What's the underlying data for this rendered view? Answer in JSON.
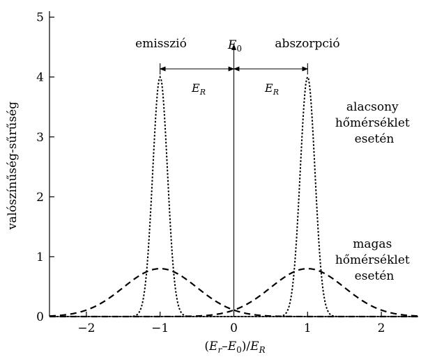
{
  "chart_data": {
    "type": "line",
    "title": "",
    "ylabel": "valószínűség-sűrűség",
    "xlabel": {
      "p1": "(",
      "E1": "E",
      "sub1": "r",
      "dash": "–",
      "E2": "E",
      "sub2": "0",
      "p2": ")/",
      "E3": "E",
      "sub3": "R"
    },
    "xlim": [
      -2.5,
      2.5
    ],
    "ylim": [
      0,
      5.1
    ],
    "xticks": [
      -2,
      -1,
      0,
      1,
      2
    ],
    "xtick_labels": [
      "−2",
      "−1",
      "0",
      "1",
      "2"
    ],
    "yticks": [
      0,
      1,
      2,
      3,
      4,
      5
    ],
    "ytick_labels": [
      "0",
      "1",
      "2",
      "3",
      "4",
      "5"
    ],
    "grid": false,
    "series": [
      {
        "style": "dotted",
        "center": -1,
        "peak": 4.0,
        "sigma": 0.1
      },
      {
        "style": "dotted",
        "center": 1,
        "peak": 4.0,
        "sigma": 0.1
      },
      {
        "style": "dashed",
        "center": -1,
        "peak": 0.8,
        "sigma": 0.5
      },
      {
        "style": "dashed",
        "center": 1,
        "peak": 0.8,
        "sigma": 0.5
      }
    ],
    "annotations": {
      "emission": "emisszió",
      "absorption": "abszorpció",
      "E0": {
        "main": "E",
        "sub": "0"
      },
      "ER_left": {
        "main": "E",
        "sub": "R"
      },
      "ER_right": {
        "main": "E",
        "sub": "R"
      },
      "low_temp": [
        "alacsony",
        "hőmérséklet",
        "esetén"
      ],
      "high_temp": [
        "magas",
        "hőmérséklet",
        "esetén"
      ]
    }
  }
}
